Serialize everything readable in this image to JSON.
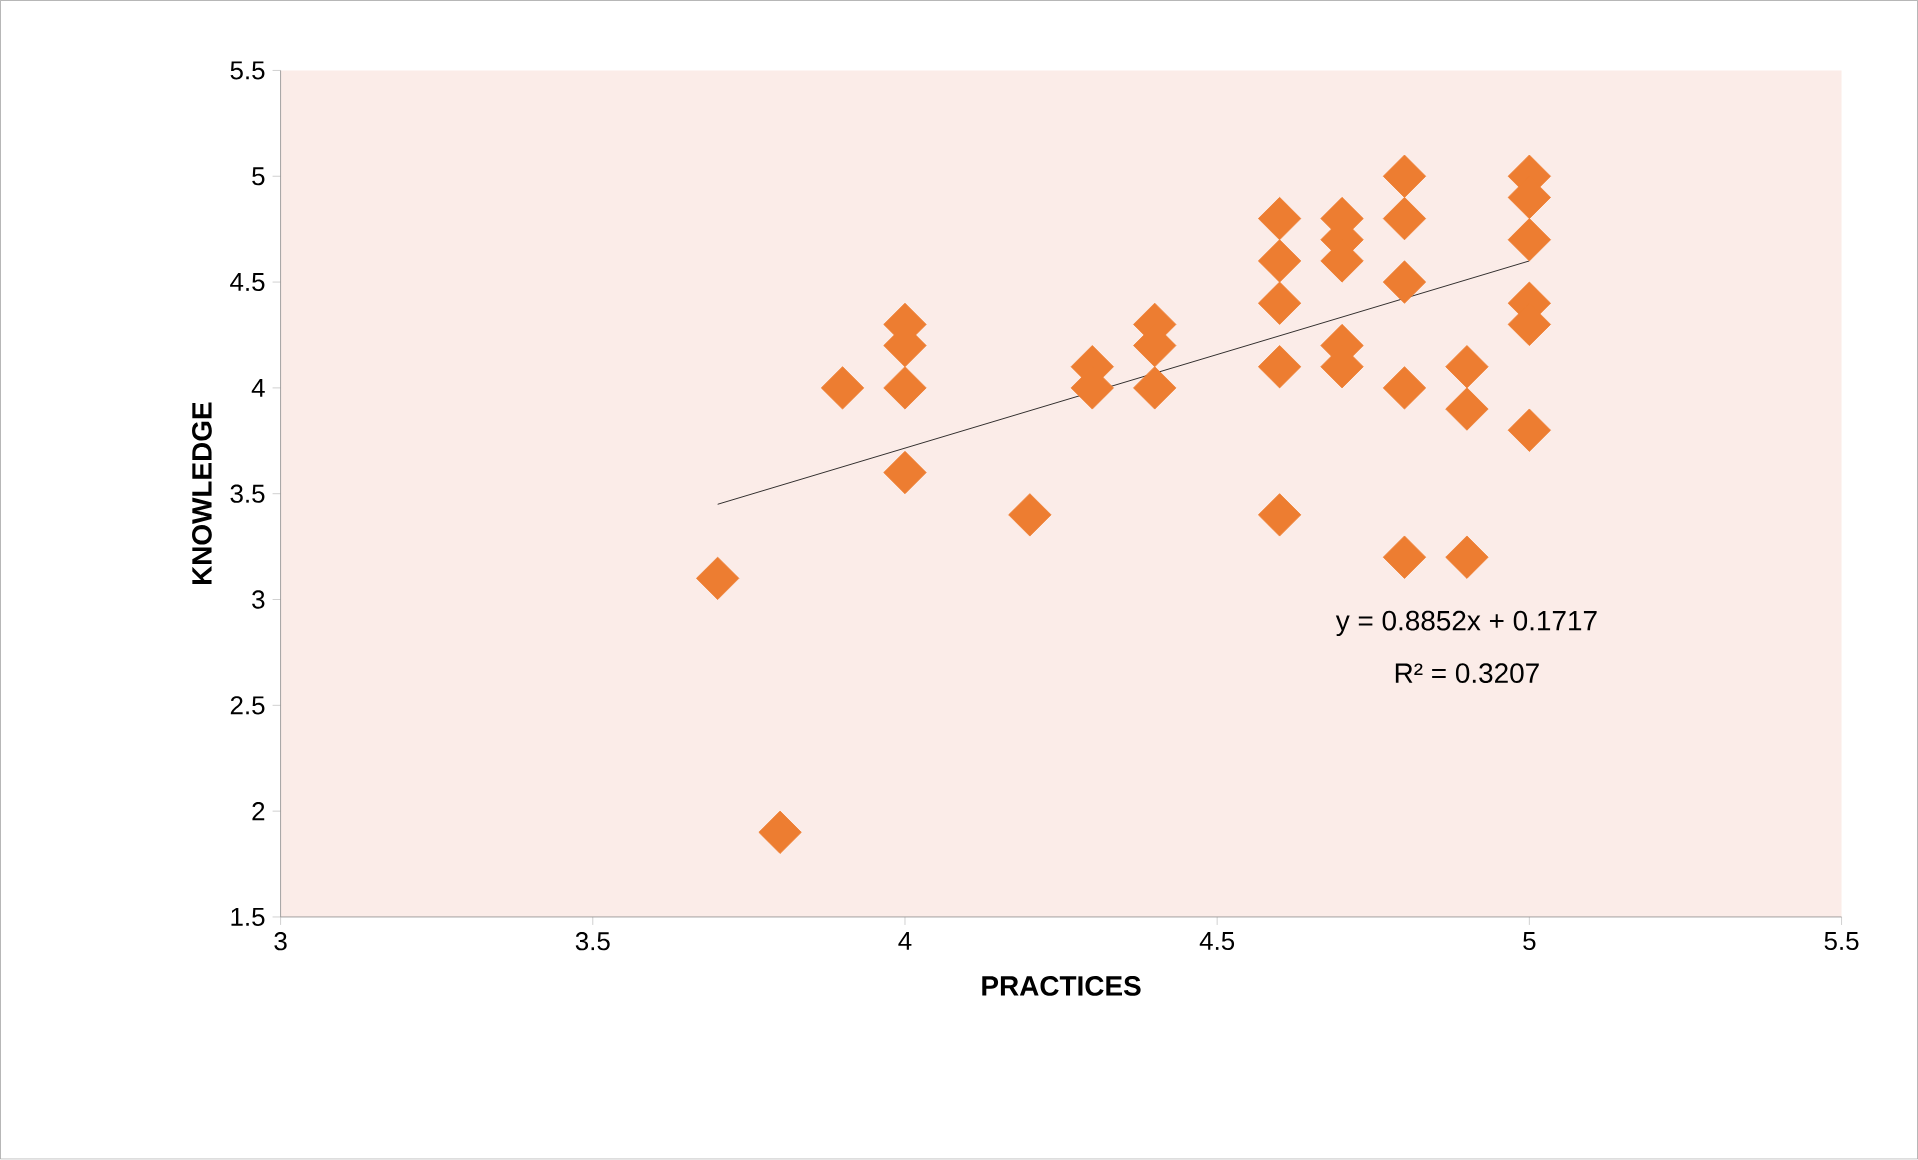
{
  "chart_data": {
    "type": "scatter",
    "xlabel": "PRACTICES",
    "ylabel": "KNOWLEDGE",
    "xlim": [
      3,
      5.5
    ],
    "xticks": [
      3,
      3.5,
      4,
      4.5,
      5,
      5.5
    ],
    "ylim": [
      1.5,
      5.5
    ],
    "yticks": [
      1.5,
      2,
      2.5,
      3,
      3.5,
      4,
      4.5,
      5,
      5.5
    ],
    "grid": false,
    "marker": "diamond",
    "series": [
      {
        "color": "#ed7d31",
        "x": [
          3.7,
          3.8,
          3.9,
          4.0,
          4.0,
          4.0,
          4.0,
          4.2,
          4.3,
          4.3,
          4.4,
          4.4,
          4.4,
          4.6,
          4.6,
          4.6,
          4.6,
          4.6,
          4.7,
          4.7,
          4.7,
          4.7,
          4.7,
          4.8,
          4.8,
          4.8,
          4.8,
          4.8,
          4.9,
          4.9,
          4.9,
          5.0,
          5.0,
          5.0,
          5.0,
          5.0,
          5.0
        ],
        "values": [
          3.1,
          1.9,
          4.0,
          4.3,
          4.2,
          4.0,
          3.6,
          3.4,
          4.1,
          4.0,
          4.3,
          4.2,
          4.0,
          4.8,
          4.6,
          4.4,
          4.1,
          3.4,
          4.8,
          4.7,
          4.6,
          4.2,
          4.1,
          5.0,
          4.8,
          4.5,
          4.0,
          3.2,
          4.1,
          3.9,
          3.2,
          5.0,
          4.9,
          4.7,
          4.4,
          4.3,
          3.8
        ]
      },
      {
        "type": "line",
        "color": "#000000",
        "marker": "none",
        "x": [
          3.7,
          5.0
        ],
        "values": [
          3.45,
          4.6
        ]
      }
    ],
    "annotations": [
      "y = 0.8852x + 0.1717",
      "R² = 0.3207"
    ]
  }
}
